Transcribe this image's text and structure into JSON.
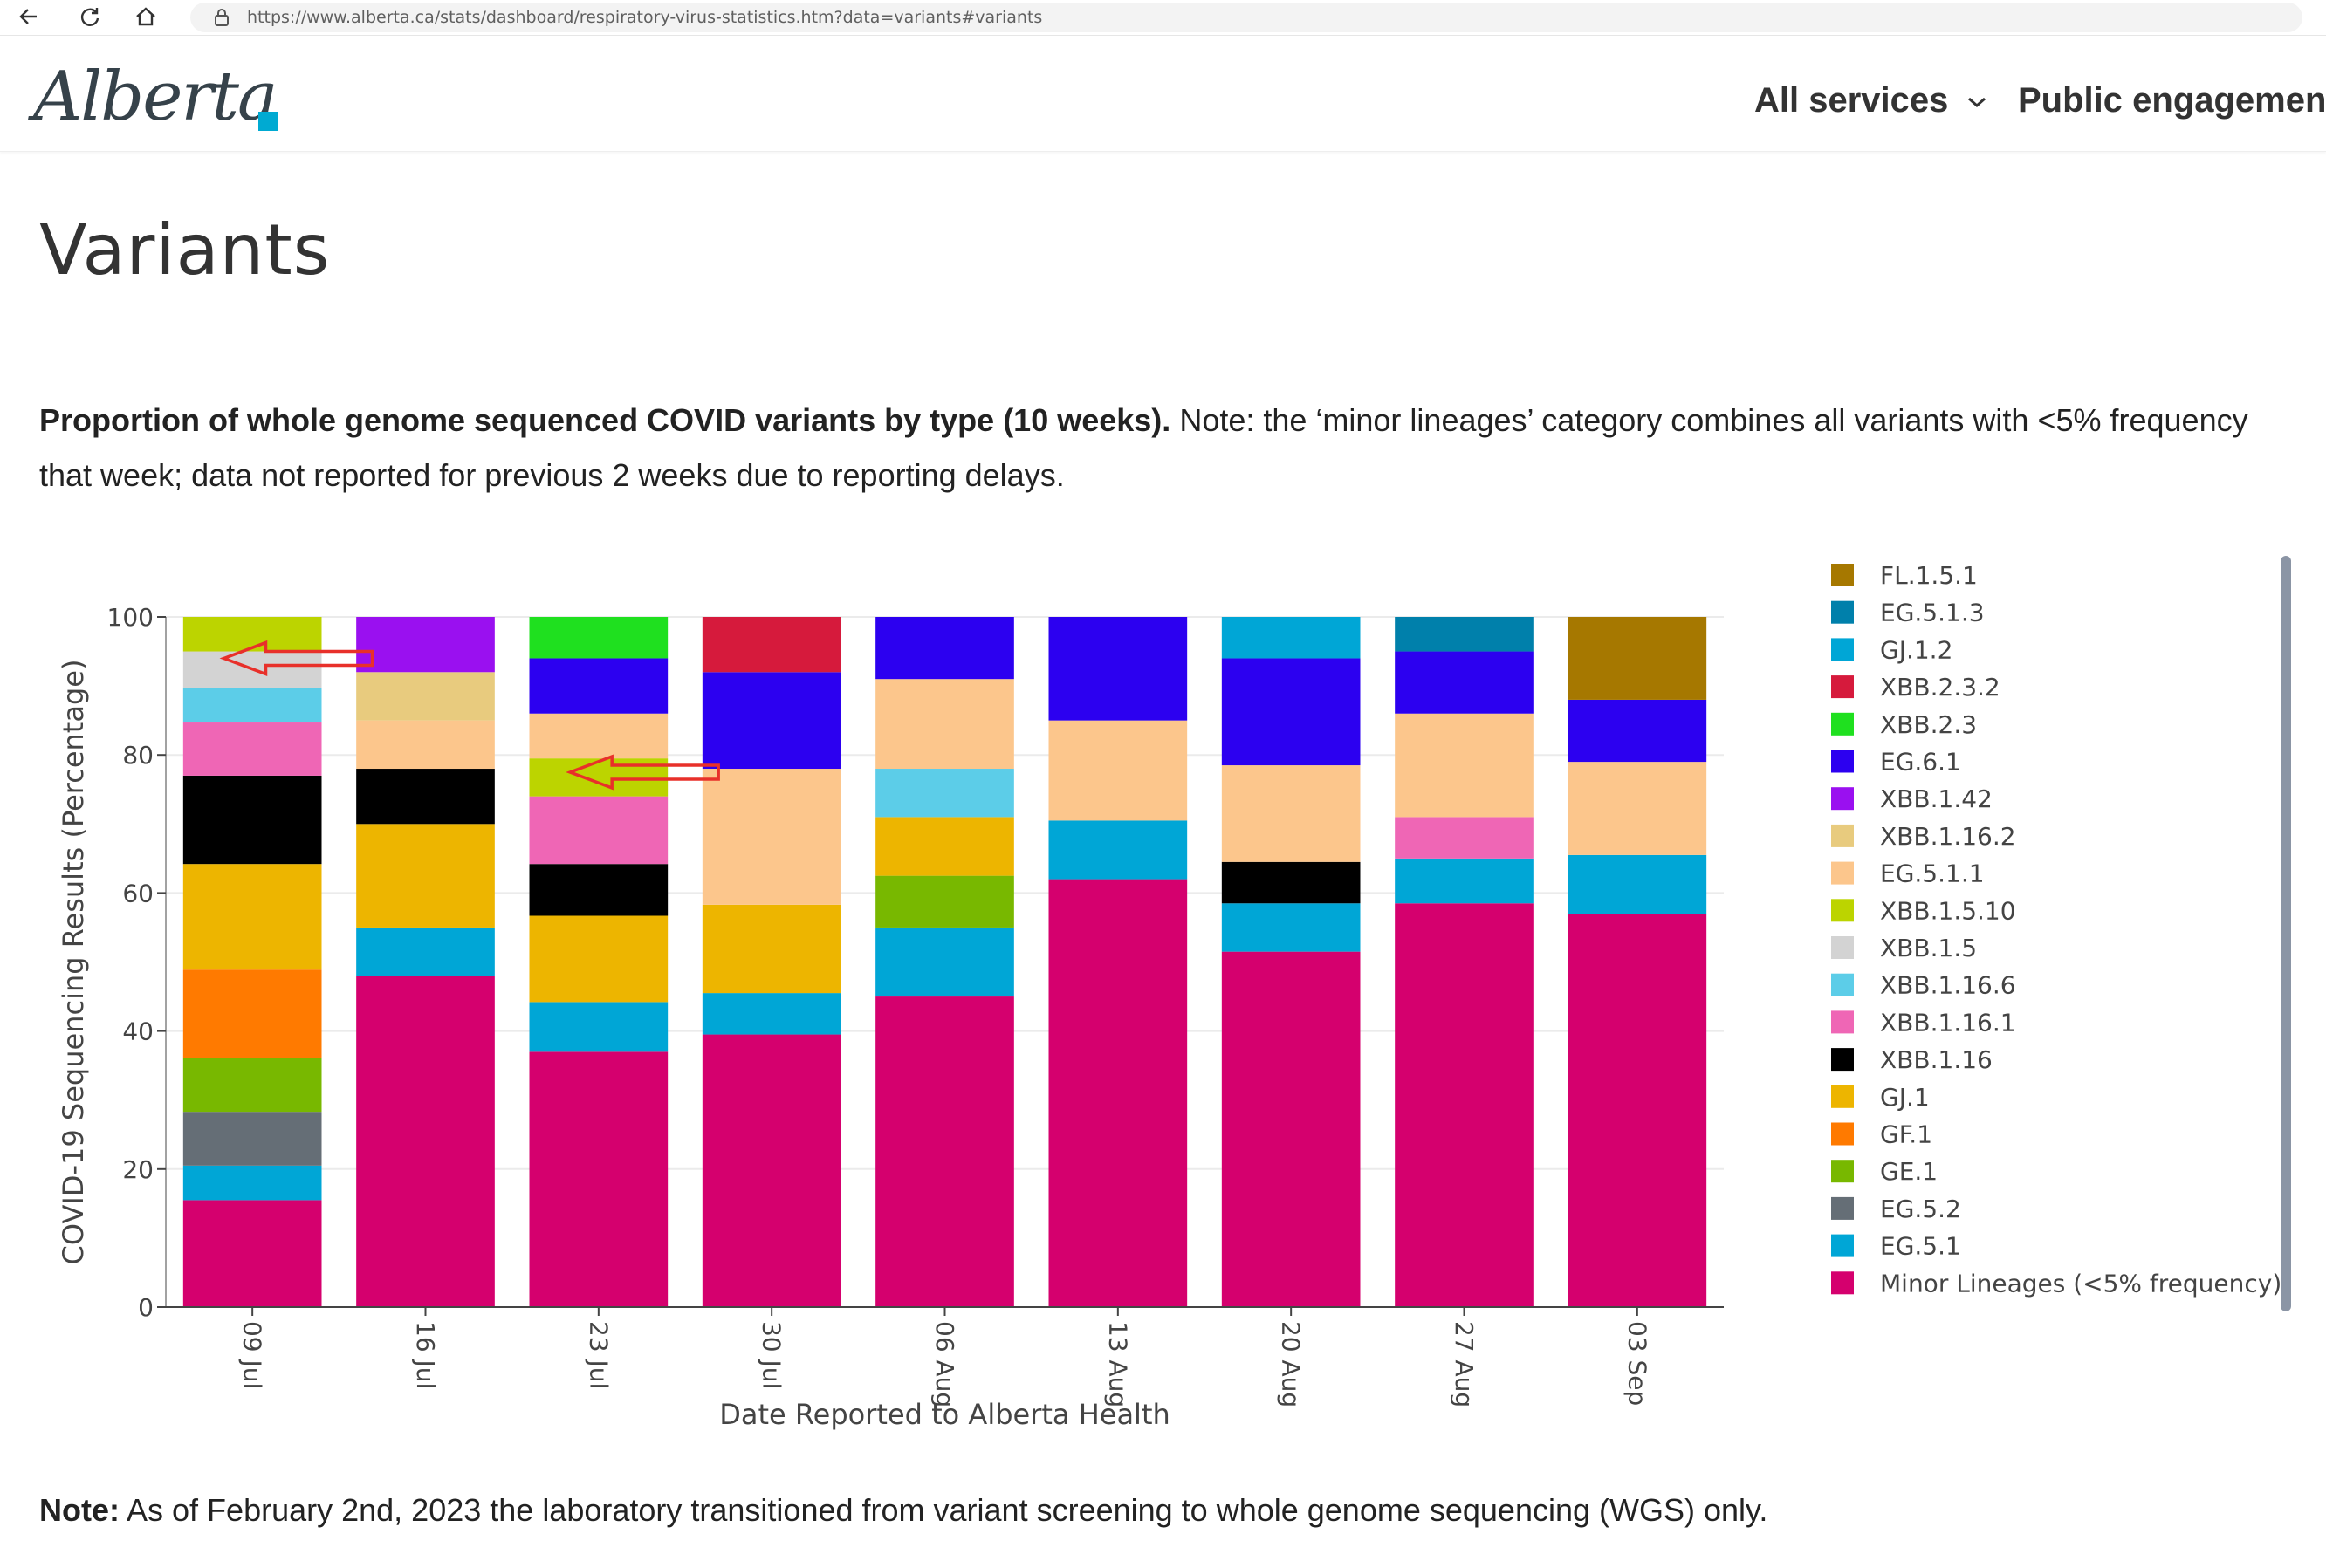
{
  "browser": {
    "url": "https://www.alberta.ca/stats/dashboard/respiratory-virus-statistics.htm?data=variants#variants"
  },
  "header": {
    "logo_text": "Alberta",
    "nav": [
      {
        "label": "All services"
      },
      {
        "label": "Public engagement"
      }
    ]
  },
  "page": {
    "title": "Variants",
    "intro_bold": "Proportion of whole genome sequenced COVID variants by type (10 weeks).",
    "intro_rest": " Note: the ‘minor lineages’ category combines all variants with <5% frequency that week; data not reported for previous 2 weeks due to reporting delays.",
    "note_bold": "Note:",
    "note_rest": " As of February 2nd, 2023 the laboratory transitioned from variant screening to whole genome sequencing (WGS) only."
  },
  "chart_data": {
    "type": "bar",
    "stacked": true,
    "xlabel": "Date Reported to Alberta Health",
    "ylabel": "COVID-19 Sequencing Results (Percentage)",
    "ylim": [
      0,
      100
    ],
    "yticks": [
      0,
      20,
      40,
      60,
      80,
      100
    ],
    "grid": true,
    "legend_position": "right",
    "categories": [
      "09 Jul",
      "16 Jul",
      "23 Jul",
      "30 Jul",
      "06 Aug",
      "13 Aug",
      "20 Aug",
      "27 Aug",
      "03 Sep"
    ],
    "series": [
      {
        "name": "Minor Lineages (<5% frequency)",
        "color": "#d5006e",
        "values": [
          15.5,
          48,
          37,
          39.5,
          45,
          62,
          51.5,
          58.5,
          57
        ]
      },
      {
        "name": "EG.5.1",
        "color": "#00a6d6",
        "values": [
          5,
          7,
          7.2,
          6,
          10,
          8.5,
          7,
          6.5,
          8.5
        ]
      },
      {
        "name": "EG.5.2",
        "color": "#656e76",
        "values": [
          7.8,
          0,
          0,
          0,
          0,
          0,
          0,
          0,
          0
        ]
      },
      {
        "name": "GE.1",
        "color": "#78b800",
        "values": [
          7.8,
          0,
          0,
          0,
          7.5,
          0,
          0,
          0,
          0
        ]
      },
      {
        "name": "GF.1",
        "color": "#ff7a00",
        "values": [
          12.8,
          0,
          0,
          0,
          0,
          0,
          0,
          0,
          0
        ]
      },
      {
        "name": "GJ.1",
        "color": "#edb500",
        "values": [
          15.3,
          15,
          12.5,
          12.8,
          8.5,
          0,
          0,
          0,
          0
        ]
      },
      {
        "name": "XBB.1.16",
        "color": "#000000",
        "values": [
          12.8,
          8,
          7.5,
          0,
          0,
          0,
          6,
          0,
          0
        ]
      },
      {
        "name": "XBB.1.16.1",
        "color": "#ef66b5",
        "values": [
          7.7,
          0,
          9.8,
          0,
          0,
          0,
          0,
          6,
          0
        ]
      },
      {
        "name": "XBB.1.16.6",
        "color": "#5ccde8",
        "values": [
          5,
          0,
          0,
          0,
          7,
          0,
          0,
          0,
          0
        ]
      },
      {
        "name": "XBB.1.5",
        "color": "#d3d3d3",
        "values": [
          5.3,
          0,
          0,
          0,
          0,
          0,
          0,
          0,
          0
        ]
      },
      {
        "name": "XBB.1.5.10",
        "color": "#bcd400",
        "values": [
          5,
          0,
          5.5,
          0,
          0,
          0,
          0,
          0,
          0
        ]
      },
      {
        "name": "EG.5.1.1",
        "color": "#fcc68c",
        "values": [
          0,
          7,
          6.5,
          19.7,
          13,
          14.5,
          14,
          15,
          13.5
        ]
      },
      {
        "name": "XBB.1.16.2",
        "color": "#e8cb7e",
        "values": [
          0,
          7,
          0,
          0,
          0,
          0,
          0,
          0,
          0
        ]
      },
      {
        "name": "XBB.1.42",
        "color": "#9a10f0",
        "values": [
          0,
          8,
          0,
          0,
          0,
          0,
          0,
          0,
          0
        ]
      },
      {
        "name": "EG.6.1",
        "color": "#2c00f0",
        "values": [
          0,
          0,
          8,
          14,
          9,
          15,
          15.5,
          9,
          9
        ]
      },
      {
        "name": "XBB.2.3",
        "color": "#1fe01f",
        "values": [
          0,
          0,
          6,
          0,
          0,
          0,
          0,
          0,
          0
        ]
      },
      {
        "name": "XBB.2.3.2",
        "color": "#d61a3c",
        "values": [
          0,
          0,
          0,
          8,
          0,
          0,
          0,
          0,
          0
        ]
      },
      {
        "name": "GJ.1.2",
        "color": "#00a6d6",
        "values": [
          0,
          0,
          0,
          0,
          0,
          0,
          6,
          0,
          0
        ]
      },
      {
        "name": "EG.5.1.3",
        "color": "#0080ab",
        "values": [
          0,
          0,
          0,
          0,
          0,
          0,
          0,
          5,
          0
        ]
      },
      {
        "name": "FL.1.5.1",
        "color": "#a67800",
        "values": [
          0,
          0,
          0,
          0,
          0,
          0,
          0,
          0,
          12
        ]
      }
    ],
    "legend": [
      {
        "name": "FL.1.5.1",
        "color": "#a67800"
      },
      {
        "name": "EG.5.1.3",
        "color": "#0080ab"
      },
      {
        "name": "GJ.1.2",
        "color": "#00a6d6"
      },
      {
        "name": "XBB.2.3.2",
        "color": "#d61a3c"
      },
      {
        "name": "XBB.2.3",
        "color": "#1fe01f"
      },
      {
        "name": "EG.6.1",
        "color": "#2c00f0"
      },
      {
        "name": "XBB.1.42",
        "color": "#9a10f0"
      },
      {
        "name": "XBB.1.16.2",
        "color": "#e8cb7e"
      },
      {
        "name": "EG.5.1.1",
        "color": "#fcc68c"
      },
      {
        "name": "XBB.1.5.10",
        "color": "#bcd400"
      },
      {
        "name": "XBB.1.5",
        "color": "#d3d3d3"
      },
      {
        "name": "XBB.1.16.6",
        "color": "#5ccde8"
      },
      {
        "name": "XBB.1.16.1",
        "color": "#ef66b5"
      },
      {
        "name": "XBB.1.16",
        "color": "#000000"
      },
      {
        "name": "GJ.1",
        "color": "#edb500"
      },
      {
        "name": "GF.1",
        "color": "#ff7a00"
      },
      {
        "name": "GE.1",
        "color": "#78b800"
      },
      {
        "name": "EG.5.2",
        "color": "#656e76"
      },
      {
        "name": "EG.5.1",
        "color": "#00a6d6"
      },
      {
        "name": "Minor Lineages (<5% frequency)",
        "color": "#d5006e"
      }
    ],
    "annotations": [
      {
        "type": "arrow",
        "color": "#e8302a",
        "points_to": "09 Jul",
        "at_value": 94
      },
      {
        "type": "arrow",
        "color": "#e8302a",
        "points_to": "23 Jul",
        "at_value": 77.5
      }
    ]
  }
}
